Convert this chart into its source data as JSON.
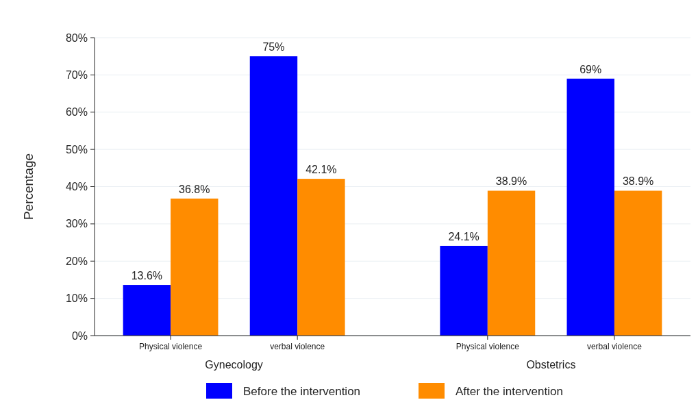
{
  "chart_data": {
    "type": "bar",
    "ylabel": "Percentage",
    "categories": [
      "Physical violence",
      "verbal violence",
      "Physical violence",
      "verbal violence"
    ],
    "annotations": [
      "Gynecology",
      "Obstetrics"
    ],
    "series": [
      {
        "name": "Before the intervention",
        "color": "#0000ff",
        "values": [
          13.6,
          75,
          24.1,
          69
        ],
        "value_labels": [
          "13.6%",
          "75%",
          "24.1%",
          "69%"
        ]
      },
      {
        "name": "After the intervention",
        "color": "#ff8c00",
        "values": [
          36.8,
          42.1,
          38.9,
          38.9
        ],
        "value_labels": [
          "36.8%",
          "42.1%",
          "38.9%",
          "38.9%"
        ]
      }
    ],
    "ylim": [
      0,
      80
    ],
    "yticks": [
      {
        "value": 0,
        "label": "0%"
      },
      {
        "value": 10,
        "label": "10%"
      },
      {
        "value": 20,
        "label": "20%"
      },
      {
        "value": 30,
        "label": "30%"
      },
      {
        "value": 40,
        "label": "40%"
      },
      {
        "value": 50,
        "label": "50%"
      },
      {
        "value": 60,
        "label": "60%"
      },
      {
        "value": 70,
        "label": "70%"
      },
      {
        "value": 80,
        "label": "80%"
      }
    ],
    "grid": "y",
    "legend": "bottom"
  }
}
